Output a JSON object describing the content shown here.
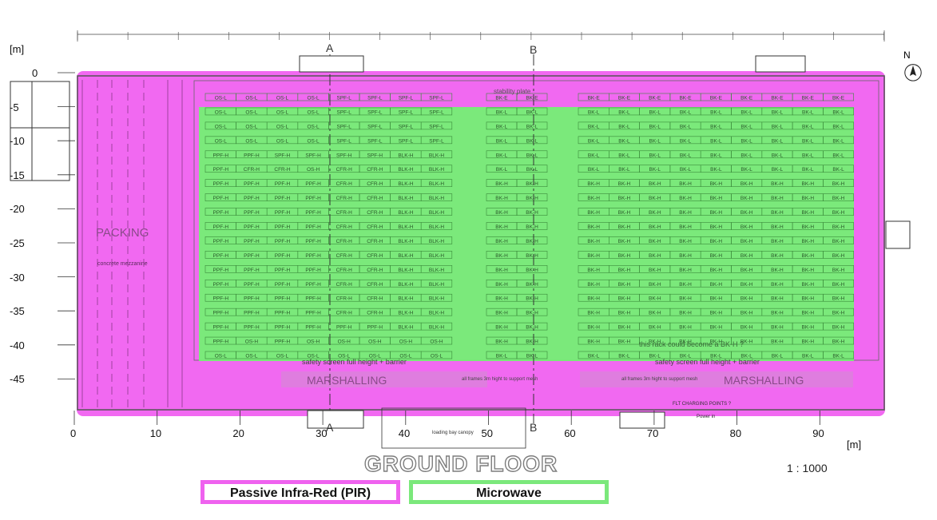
{
  "plan": {
    "y_axis_label": "[m]",
    "x_axis_label": "[m]",
    "y_ticks": [
      "0",
      "-5",
      "-10",
      "-15",
      "-20",
      "-25",
      "-30",
      "-35",
      "-40",
      "-45"
    ],
    "x_ticks": [
      "0",
      "10",
      "20",
      "30",
      "40",
      "50",
      "60",
      "70",
      "80",
      "90"
    ],
    "title": "GROUND FLOOR",
    "scale": "1 : 1000",
    "north": "N",
    "section_marks": [
      "A",
      "B"
    ],
    "labels": {
      "packing": "PACKING",
      "mezzanine": "concrete mezzanine",
      "marshalling_left": "MARSHALLING",
      "marshalling_right": "MARSHALLING",
      "stability_plate": "stability plate",
      "safety_screen": "safety screen full height + barrier",
      "mesh_note": "all frames 3m hight to support mesh",
      "rack_note": "this rack could become a BK-H ?",
      "flt_charging": "FLT CHARGING POINTS ?",
      "power": "Power in",
      "canopy": "loading bay canopy"
    },
    "rows_left": [
      [
        "OS-L",
        "OS-L",
        "OS-L",
        "OS-L",
        "SPF-L",
        "SPF-L",
        "SPF-L",
        "SPF-L"
      ],
      [
        "OS-L",
        "OS-L",
        "OS-L",
        "OS-L",
        "SPF-L",
        "SPF-L",
        "SPF-L",
        "SPF-L"
      ],
      [
        "OS-L",
        "OS-L",
        "OS-L",
        "OS-L",
        "SPF-L",
        "SPF-L",
        "SPF-L",
        "SPF-L"
      ],
      [
        "OS-L",
        "OS-L",
        "OS-L",
        "OS-L",
        "SPF-L",
        "SPF-L",
        "SPF-L",
        "SPF-L"
      ],
      [
        "PPF-H",
        "PPF-H",
        "SPF-H",
        "SPF-H",
        "SPF-H",
        "SPF-H",
        "BLK-H",
        "BLK-H"
      ],
      [
        "PPF-H",
        "CFR-H",
        "CFR-H",
        "OS-H",
        "CFR-H",
        "CFR-H",
        "BLK-H",
        "BLK-H"
      ],
      [
        "PPF-H",
        "PPF-H",
        "PPF-H",
        "PPF-H",
        "CFR-H",
        "CFR-H",
        "BLK-H",
        "BLK-H"
      ],
      [
        "PPF-H",
        "PPF-H",
        "PPF-H",
        "PPF-H",
        "CFR-H",
        "CFR-H",
        "BLK-H",
        "BLK-H"
      ],
      [
        "PPF-H",
        "PPF-H",
        "PPF-H",
        "PPF-H",
        "CFR-H",
        "CFR-H",
        "BLK-H",
        "BLK-H"
      ],
      [
        "PPF-H",
        "PPF-H",
        "PPF-H",
        "PPF-H",
        "CFR-H",
        "CFR-H",
        "BLK-H",
        "BLK-H"
      ],
      [
        "PPF-H",
        "PPF-H",
        "PPF-H",
        "PPF-H",
        "CFR-H",
        "CFR-H",
        "BLK-H",
        "BLK-H"
      ],
      [
        "PPF-H",
        "PPF-H",
        "PPF-H",
        "PPF-H",
        "CFR-H",
        "CFR-H",
        "BLK-H",
        "BLK-H"
      ],
      [
        "PPF-H",
        "PPF-H",
        "PPF-H",
        "PPF-H",
        "CFR-H",
        "CFR-H",
        "BLK-H",
        "BLK-H"
      ],
      [
        "PPF-H",
        "PPF-H",
        "PPF-H",
        "PPF-H",
        "CFR-H",
        "CFR-H",
        "BLK-H",
        "BLK-H"
      ],
      [
        "PPF-H",
        "PPF-H",
        "PPF-H",
        "PPF-H",
        "CFR-H",
        "CFR-H",
        "BLK-H",
        "BLK-H"
      ],
      [
        "PPF-H",
        "PPF-H",
        "PPF-H",
        "PPF-H",
        "CFR-H",
        "CFR-H",
        "BLK-H",
        "BLK-H"
      ],
      [
        "PPF-H",
        "PPF-H",
        "PPF-H",
        "PPF-H",
        "PPF-H",
        "PPF-H",
        "BLK-H",
        "BLK-H"
      ],
      [
        "PPF-H",
        "OS-H",
        "PPF-H",
        "OS-H",
        "OS-H",
        "OS-H",
        "OS-H",
        "OS-H"
      ],
      [
        "OS-L",
        "OS-L",
        "OS-L",
        "OS-L",
        "OS-L",
        "OS-L",
        "OS-L",
        "OS-L"
      ]
    ],
    "rows_mid": [
      [
        "BK-E",
        "BK-E"
      ],
      [
        "BK-L",
        "BK-L"
      ],
      [
        "BK-L",
        "BK-L"
      ],
      [
        "BK-L",
        "BK-L"
      ],
      [
        "BK-L",
        "BK-L"
      ],
      [
        "BK-L",
        "BK-L"
      ],
      [
        "BK-H",
        "BK-H"
      ],
      [
        "BK-H",
        "BK-H"
      ],
      [
        "BK-H",
        "BK-H"
      ],
      [
        "BK-H",
        "BK-H"
      ],
      [
        "BK-H",
        "BK-H"
      ],
      [
        "BK-H",
        "BK-H"
      ],
      [
        "BK-H",
        "BK-H"
      ],
      [
        "BK-H",
        "BK-H"
      ],
      [
        "BK-H",
        "BK-H"
      ],
      [
        "BK-H",
        "BK-H"
      ],
      [
        "BK-H",
        "BK-H"
      ],
      [
        "BK-H",
        "BK-H"
      ],
      [
        "BK-L",
        "BK-L"
      ]
    ],
    "rows_right": [
      [
        "BK-E",
        "BK-E",
        "BK-E",
        "BK-E",
        "BK-E",
        "BK-E",
        "BK-E",
        "BK-E",
        "BK-E"
      ],
      [
        "BK-L",
        "BK-L",
        "BK-L",
        "BK-L",
        "BK-L",
        "BK-L",
        "BK-L",
        "BK-L",
        "BK-L"
      ],
      [
        "BK-L",
        "BK-L",
        "BK-L",
        "BK-L",
        "BK-L",
        "BK-L",
        "BK-L",
        "BK-L",
        "BK-L"
      ],
      [
        "BK-L",
        "BK-L",
        "BK-L",
        "BK-L",
        "BK-L",
        "BK-L",
        "BK-L",
        "BK-L",
        "BK-L"
      ],
      [
        "BK-L",
        "BK-L",
        "BK-L",
        "BK-L",
        "BK-L",
        "BK-L",
        "BK-L",
        "BK-L",
        "BK-L"
      ],
      [
        "BK-L",
        "BK-L",
        "BK-L",
        "BK-L",
        "BK-L",
        "BK-L",
        "BK-L",
        "BK-L",
        "BK-L"
      ],
      [
        "BK-H",
        "BK-H",
        "BK-H",
        "BK-H",
        "BK-H",
        "BK-H",
        "BK-H",
        "BK-H",
        "BK-H"
      ],
      [
        "BK-H",
        "BK-H",
        "BK-H",
        "BK-H",
        "BK-H",
        "BK-H",
        "BK-H",
        "BK-H",
        "BK-H"
      ],
      [
        "BK-H",
        "BK-H",
        "BK-H",
        "BK-H",
        "BK-H",
        "BK-H",
        "BK-H",
        "BK-H",
        "BK-H"
      ],
      [
        "BK-H",
        "BK-H",
        "BK-H",
        "BK-H",
        "BK-H",
        "BK-H",
        "BK-H",
        "BK-H",
        "BK-H"
      ],
      [
        "BK-H",
        "BK-H",
        "BK-H",
        "BK-H",
        "BK-H",
        "BK-H",
        "BK-H",
        "BK-H",
        "BK-H"
      ],
      [
        "BK-H",
        "BK-H",
        "BK-H",
        "BK-H",
        "BK-H",
        "BK-H",
        "BK-H",
        "BK-H",
        "BK-H"
      ],
      [
        "BK-H",
        "BK-H",
        "BK-H",
        "BK-H",
        "BK-H",
        "BK-H",
        "BK-H",
        "BK-H",
        "BK-H"
      ],
      [
        "BK-H",
        "BK-H",
        "BK-H",
        "BK-H",
        "BK-H",
        "BK-H",
        "BK-H",
        "BK-H",
        "BK-H"
      ],
      [
        "BK-H",
        "BK-H",
        "BK-H",
        "BK-H",
        "BK-H",
        "BK-H",
        "BK-H",
        "BK-H",
        "BK-H"
      ],
      [
        "BK-H",
        "BK-H",
        "BK-H",
        "BK-H",
        "BK-H",
        "BK-H",
        "BK-H",
        "BK-H",
        "BK-H"
      ],
      [
        "BK-H",
        "BK-H",
        "BK-H",
        "BK-H",
        "BK-H",
        "BK-H",
        "BK-H",
        "BK-H",
        "BK-H"
      ],
      [
        "BK-H",
        "BK-H",
        "BK-H",
        "BK-H",
        "BK-H",
        "BK-H",
        "BK-H",
        "BK-H",
        "BK-H"
      ],
      [
        "BK-L",
        "BK-L",
        "BK-L",
        "BK-L",
        "BK-L",
        "BK-L",
        "BK-L",
        "BK-L",
        "BK-L"
      ]
    ]
  },
  "legend": {
    "pir": "Passive Infra-Red (PIR)",
    "microwave": "Microwave"
  },
  "colors": {
    "pir": "#f05cf0",
    "microwave": "#74f074",
    "rack_line": "#3a8a3a",
    "wall": "#555555"
  }
}
